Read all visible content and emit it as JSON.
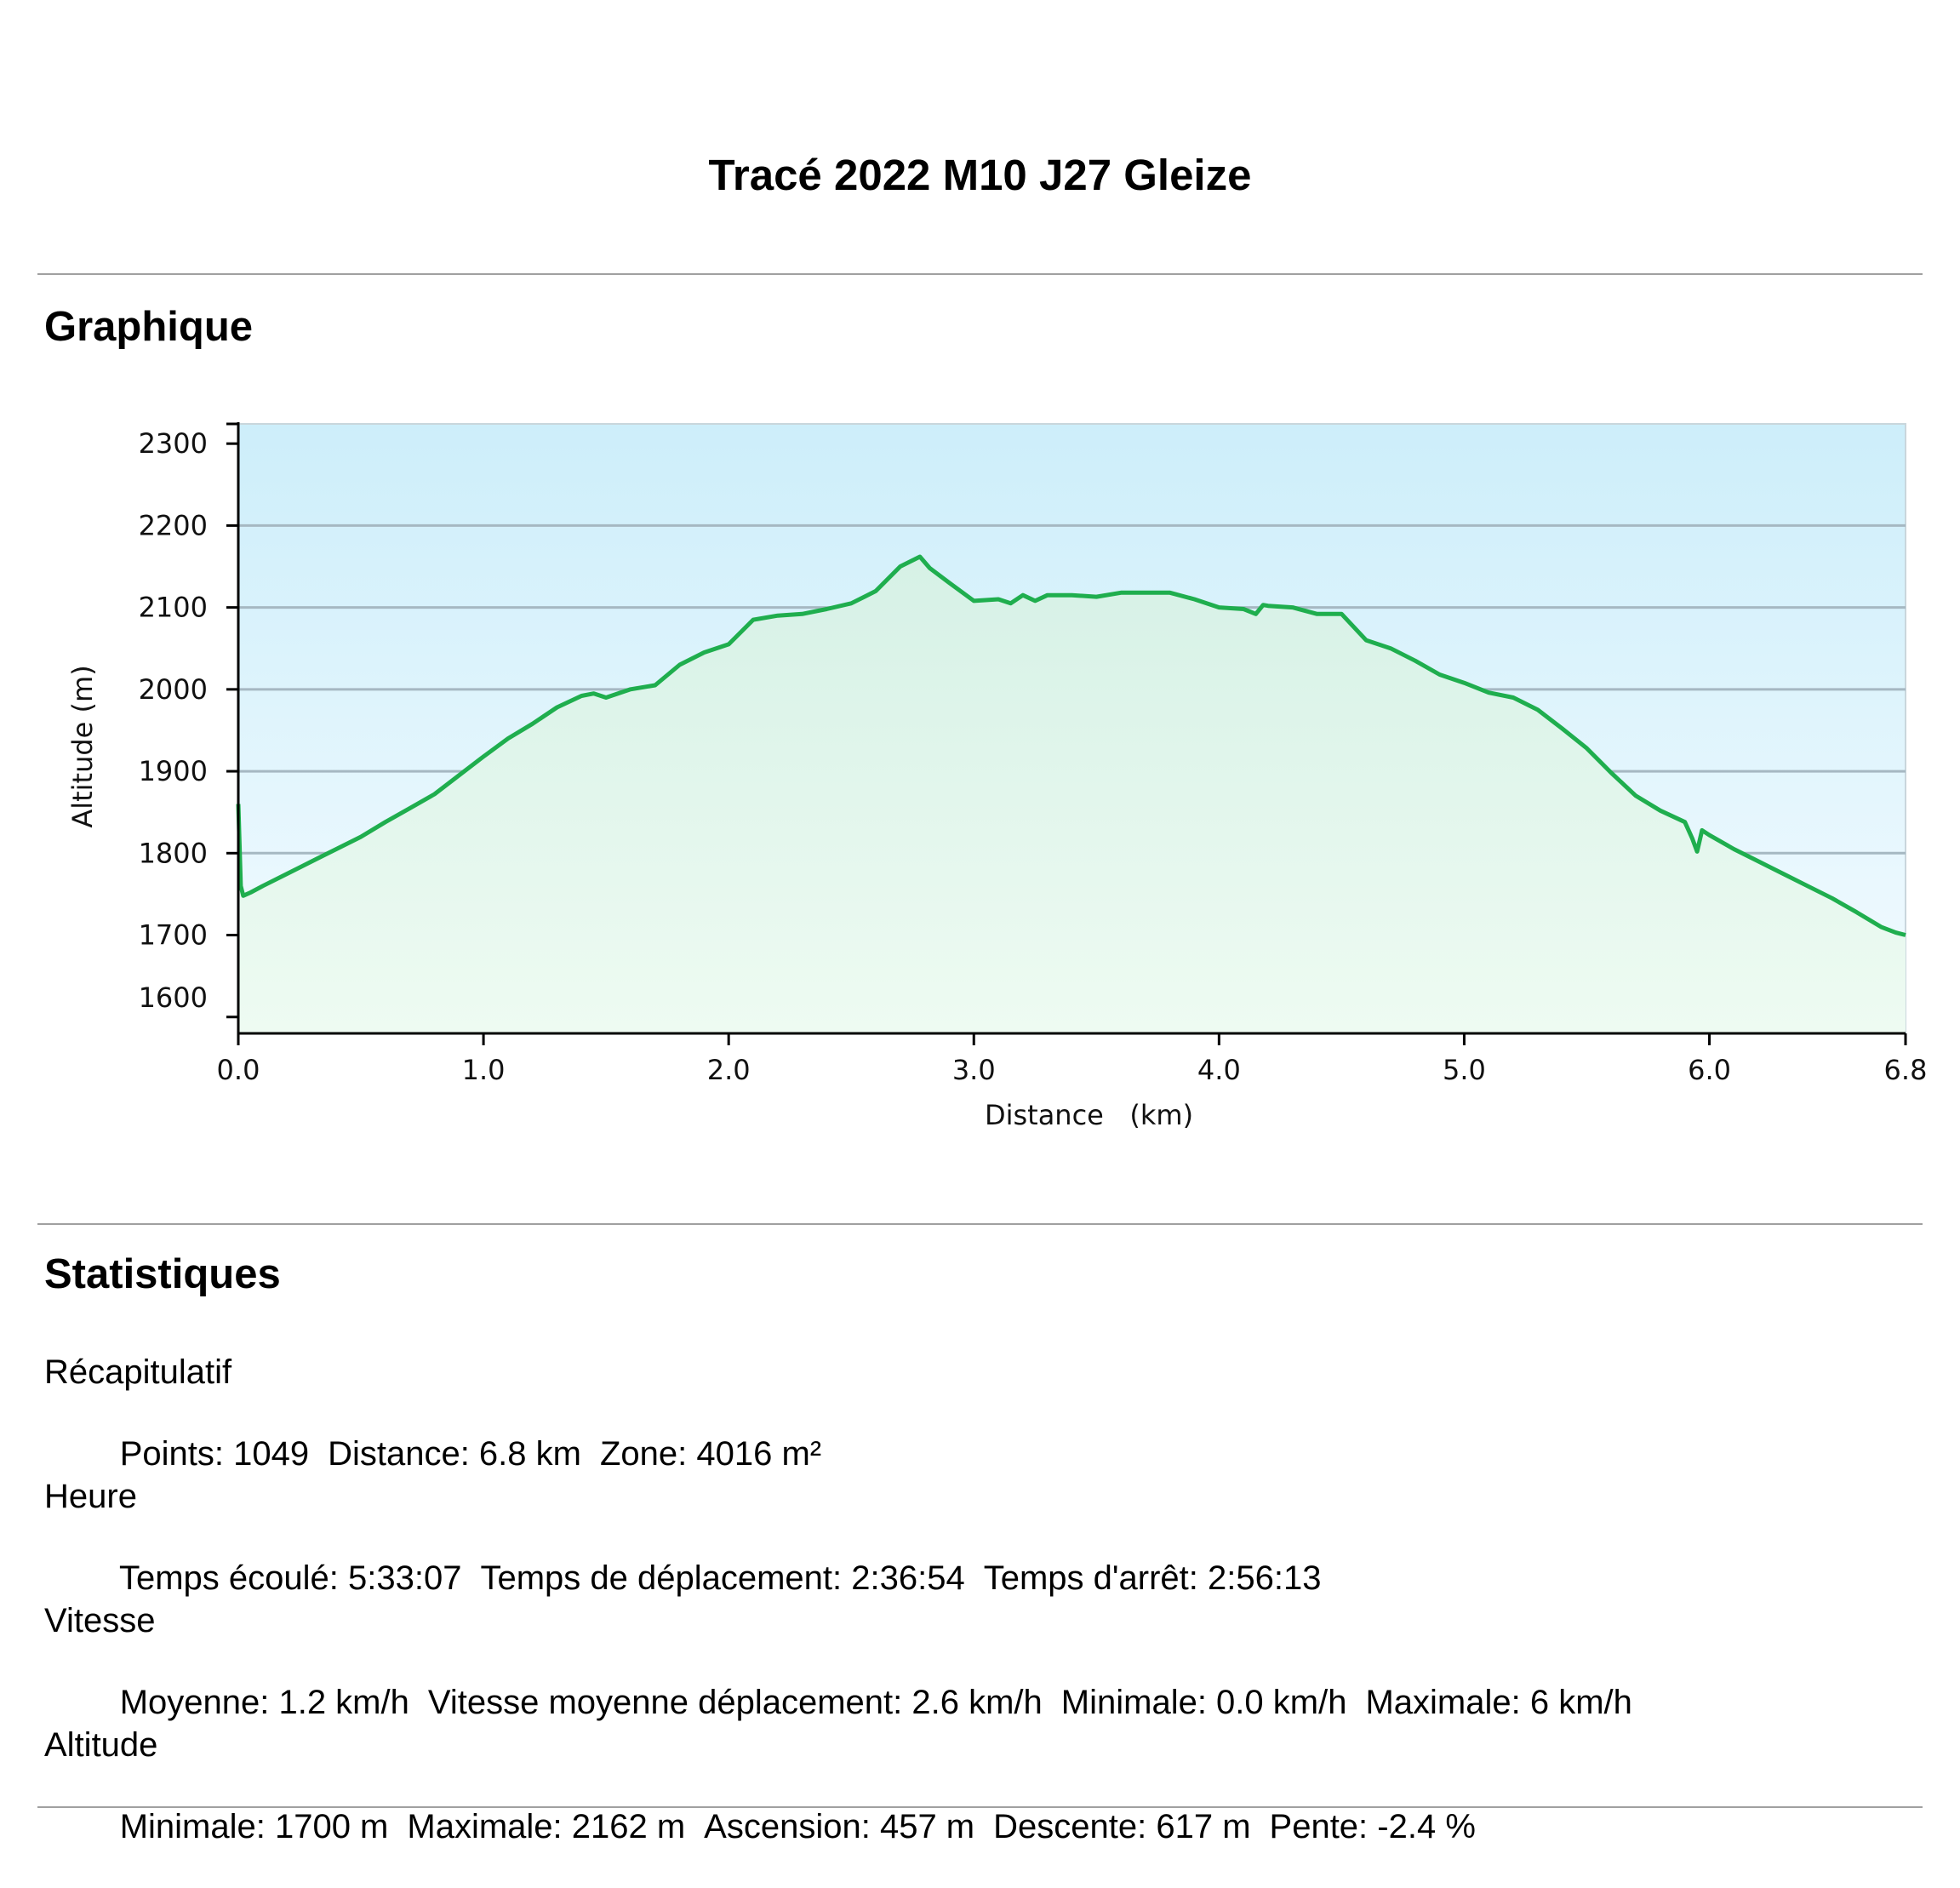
{
  "report": {
    "title": "Tracé 2022 M10 J27 Gleize"
  },
  "sections": {
    "chart_heading": "Graphique",
    "stats_heading": "Statistiques"
  },
  "chart_data": {
    "type": "area",
    "title": "",
    "xlabel": "Distance   (km)",
    "ylabel": "Altitude (m)",
    "xlim": [
      0,
      6.8
    ],
    "ylim": [
      1600,
      2300
    ],
    "xticks": [
      "0.0",
      "1.0",
      "2.0",
      "3.0",
      "4.0",
      "5.0",
      "6.0",
      "6.8"
    ],
    "yticks": [
      "2300",
      "2200",
      "2100",
      "2000",
      "1900",
      "1800",
      "1700",
      "1600"
    ],
    "grid": true,
    "legend": "none",
    "colors": {
      "line": "#1fae4e",
      "fill_top": "#d6f1e6",
      "fill_bottom": "#eefbf2",
      "bg_top": "#cdeefa",
      "bg_bottom": "#f3fbff",
      "grid": "#a6b8c2"
    },
    "series": [
      {
        "x": [
          0,
          0.01,
          0.02,
          0.05,
          0.1,
          0.2,
          0.3,
          0.4,
          0.5,
          0.6,
          0.7,
          0.8,
          0.9,
          1.0,
          1.1,
          1.2,
          1.3,
          1.4,
          1.45,
          1.5,
          1.6,
          1.7,
          1.8,
          1.9,
          2.0,
          2.1,
          2.2,
          2.3,
          2.4,
          2.5,
          2.6,
          2.7,
          2.78,
          2.82,
          2.9,
          3.0,
          3.1,
          3.15,
          3.2,
          3.25,
          3.3,
          3.4,
          3.5,
          3.6,
          3.7,
          3.8,
          3.9,
          4.0,
          4.1,
          4.15,
          4.18,
          4.2,
          4.3,
          4.4,
          4.5,
          4.6,
          4.7,
          4.8,
          4.9,
          5.0,
          5.1,
          5.2,
          5.3,
          5.4,
          5.5,
          5.6,
          5.7,
          5.8,
          5.9,
          5.93,
          5.95,
          5.97,
          6.0,
          6.1,
          6.2,
          6.3,
          6.4,
          6.5,
          6.6,
          6.7,
          6.76,
          6.8
        ],
        "y": [
          1860,
          1760,
          1748,
          1752,
          1760,
          1775,
          1790,
          1805,
          1820,
          1838,
          1855,
          1872,
          1895,
          1918,
          1940,
          1958,
          1978,
          1992,
          1995,
          1990,
          2000,
          2005,
          2030,
          2045,
          2055,
          2085,
          2090,
          2092,
          2098,
          2105,
          2120,
          2150,
          2162,
          2148,
          2130,
          2108,
          2110,
          2105,
          2115,
          2108,
          2115,
          2115,
          2113,
          2118,
          2118,
          2118,
          2110,
          2100,
          2098,
          2092,
          2103,
          2102,
          2100,
          2092,
          2092,
          2060,
          2050,
          2035,
          2018,
          2008,
          1996,
          1990,
          1975,
          1952,
          1928,
          1898,
          1870,
          1852,
          1838,
          1818,
          1802,
          1828,
          1822,
          1805,
          1790,
          1775,
          1760,
          1745,
          1728,
          1710,
          1703,
          1700
        ]
      }
    ]
  },
  "stats": {
    "recap": {
      "title": "Récapitulatif",
      "items": [
        "Points: 1049",
        "Distance: 6.8 km",
        "Zone: 4016 m²"
      ]
    },
    "time": {
      "title": "Heure",
      "items": [
        "Temps écoulé: 5:33:07",
        "Temps de déplacement: 2:36:54",
        "Temps d'arrêt: 2:56:13"
      ]
    },
    "speed": {
      "title": "Vitesse",
      "items": [
        "Moyenne: 1.2 km/h",
        "Vitesse moyenne déplacement: 2.6 km/h",
        "Minimale: 0.0 km/h",
        "Maximale: 6 km/h"
      ]
    },
    "altitude": {
      "title": "Altitude",
      "items": [
        "Minimale: 1700 m",
        "Maximale: 2162 m",
        "Ascension: 457 m",
        "Descente: 617 m",
        "Pente: -2.4 %"
      ]
    }
  }
}
